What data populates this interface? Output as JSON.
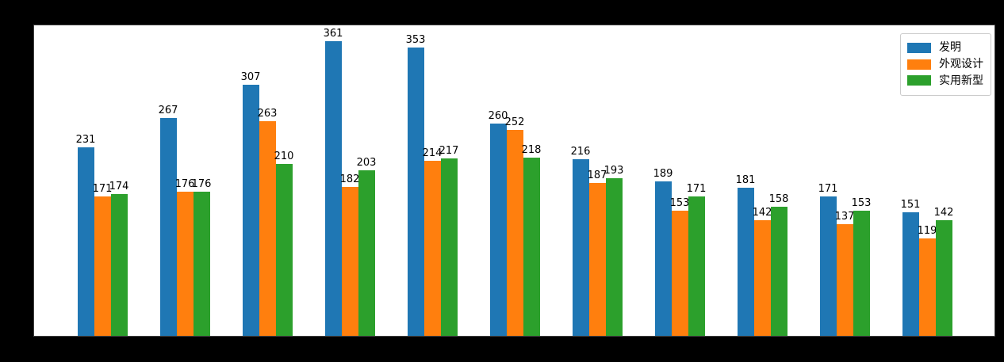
{
  "chart_data": {
    "type": "bar",
    "title": "",
    "xlabel": "",
    "ylabel": "",
    "categories": [
      "",
      "",
      "",
      "",
      "",
      "",
      "",
      "",
      "",
      "",
      ""
    ],
    "x_tick_labels_visible": false,
    "y_tick_labels_visible": false,
    "grid": false,
    "ylim": [
      0,
      380
    ],
    "legend_position": "upper-right",
    "figure_background": "#000000",
    "plot_background": "#ffffff",
    "value_labels_shown": true,
    "value_label_color": "#000000",
    "series": [
      {
        "name": "发明",
        "color": "#1f77b4",
        "values": [
          231,
          267,
          307,
          361,
          353,
          260,
          216,
          189,
          181,
          171,
          151
        ]
      },
      {
        "name": "外观设计",
        "color": "#ff7f0e",
        "values": [
          171,
          176,
          263,
          182,
          214,
          252,
          187,
          153,
          142,
          137,
          119
        ]
      },
      {
        "name": "实用新型",
        "color": "#2ca02c",
        "values": [
          174,
          176,
          210,
          203,
          217,
          218,
          193,
          171,
          158,
          153,
          142
        ]
      }
    ]
  }
}
